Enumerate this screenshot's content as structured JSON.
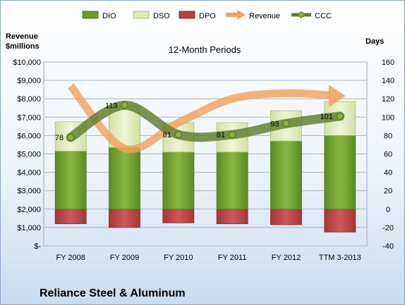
{
  "chart_data": {
    "type": "bar",
    "title": "12-Month Periods",
    "company": "Reliance Steel & Aluminum",
    "left_axis_label_line1": "Revenue",
    "left_axis_label_line2": "$millions",
    "right_axis_label": "Days",
    "categories": [
      "FY 2008",
      "FY 2009",
      "FY 2010",
      "FY 2011",
      "FY 2012",
      "TTM 3-2013"
    ],
    "left_axis": {
      "ylim": [
        0,
        10000
      ],
      "ticks": [
        "$-",
        "$1,000",
        "$2,000",
        "$3,000",
        "$4,000",
        "$5,000",
        "$6,000",
        "$7,000",
        "$8,000",
        "$9,000",
        "$10,000"
      ]
    },
    "right_axis": {
      "ylim": [
        -40,
        160
      ],
      "ticks": [
        "-40",
        "-20",
        "0",
        "20",
        "40",
        "60",
        "80",
        "100",
        "120",
        "140",
        "160"
      ]
    },
    "series": [
      {
        "name": "DIO",
        "kind": "bar",
        "axis": "right",
        "color": "#6a9a2a",
        "values": [
          63,
          67,
          62,
          62,
          74,
          80
        ]
      },
      {
        "name": "DSO",
        "kind": "bar",
        "axis": "right",
        "color": "#dfeab8",
        "values": [
          32,
          45,
          32,
          32,
          33,
          37
        ]
      },
      {
        "name": "DPO",
        "kind": "bar",
        "axis": "right",
        "color": "#b84040",
        "values": [
          -16,
          -20,
          -15,
          -16,
          -17,
          -25
        ]
      },
      {
        "name": "Revenue",
        "kind": "line",
        "axis": "left",
        "color": "#f2a05a",
        "values": [
          8700,
          5300,
          6700,
          8000,
          8300,
          8150
        ]
      },
      {
        "name": "CCC",
        "kind": "line",
        "axis": "right",
        "color": "#5f7d2d",
        "values": [
          78,
          113,
          81,
          81,
          93,
          101
        ]
      }
    ],
    "ccc_labels": [
      "78",
      "113",
      "81",
      "81",
      "93",
      "101"
    ],
    "grid": true,
    "legend_position": "top"
  }
}
